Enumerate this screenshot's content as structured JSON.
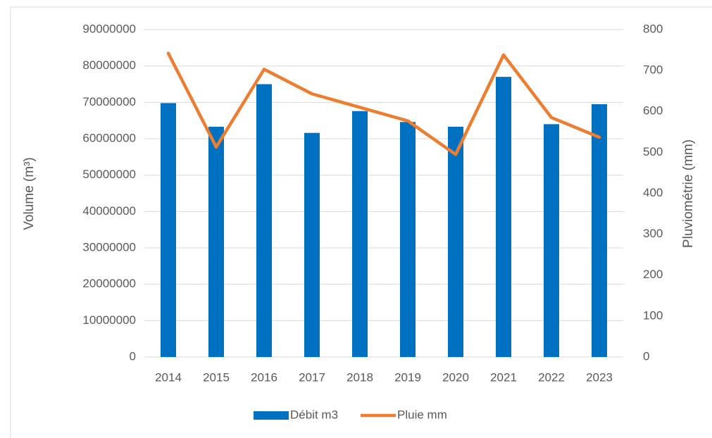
{
  "chart_data": {
    "type": "bar_line",
    "categories": [
      "2014",
      "2015",
      "2016",
      "2017",
      "2018",
      "2019",
      "2020",
      "2021",
      "2022",
      "2023"
    ],
    "y_label": "Volume (m³)",
    "y2_label": "Pluviométrie (mm)",
    "series": [
      {
        "name": "Débit m3",
        "color": "#0070c0",
        "type": "bar",
        "values": [
          69800000,
          63300000,
          75000000,
          61600000,
          67600000,
          64600000,
          63300000,
          77000000,
          64000000,
          69500000
        ]
      },
      {
        "name": "Pluie mm",
        "color": "#ed7d31",
        "type": "line",
        "axis": "y2",
        "values": [
          742,
          513,
          703,
          643,
          610,
          577,
          495,
          738,
          585,
          537
        ]
      }
    ],
    "ylim": [
      0,
      90000000
    ],
    "yticks": [
      0,
      10000000,
      20000000,
      30000000,
      40000000,
      50000000,
      60000000,
      70000000,
      80000000,
      90000000
    ],
    "y2lim": [
      0,
      800
    ],
    "y2ticks": [
      0,
      100,
      200,
      300,
      400,
      500,
      600,
      700,
      800
    ],
    "grid": true,
    "legend": "bottom"
  }
}
